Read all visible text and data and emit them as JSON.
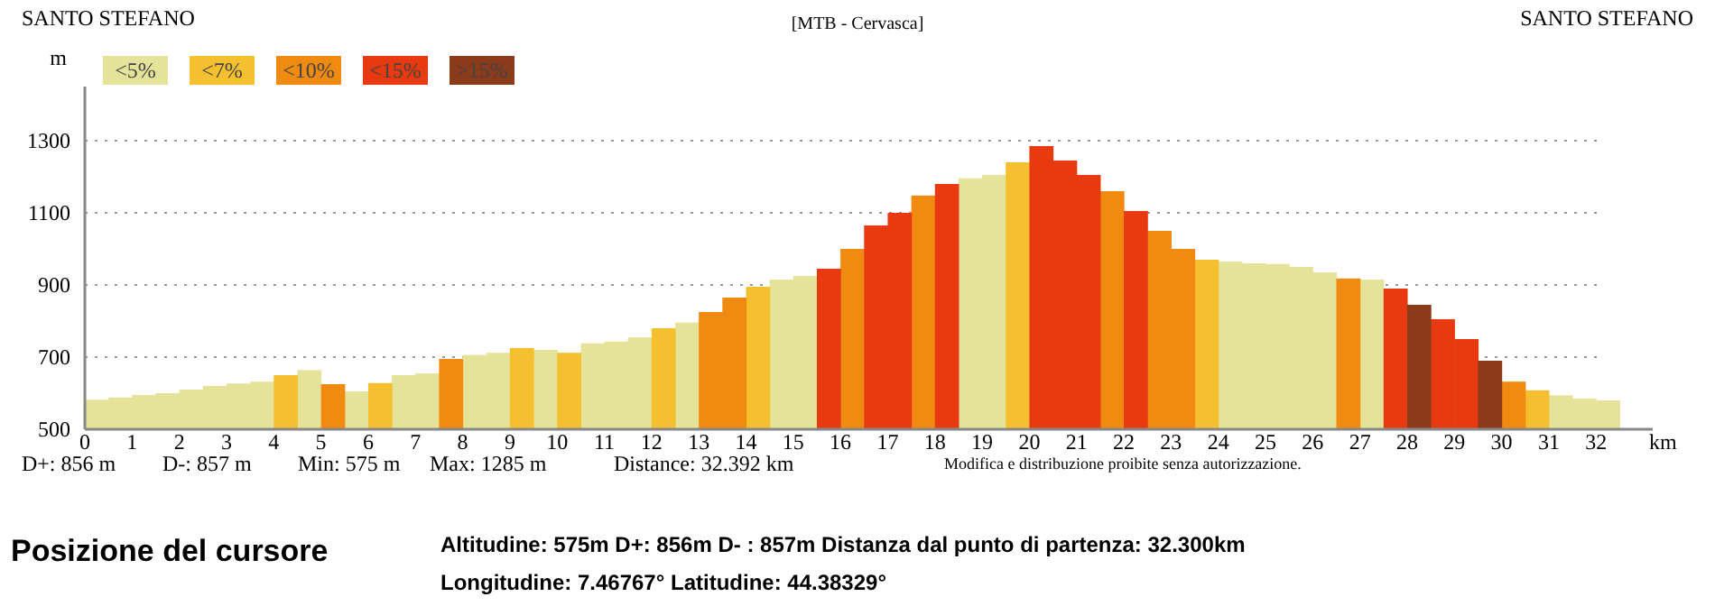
{
  "chart_data": {
    "type": "bar",
    "title": "[MTB - Cervasca]",
    "xlabel": "km",
    "ylabel": "m",
    "xlim": [
      0,
      33.2
    ],
    "xticks": [
      0,
      1,
      2,
      3,
      4,
      5,
      6,
      7,
      8,
      9,
      10,
      11,
      12,
      13,
      14,
      15,
      16,
      17,
      18,
      19,
      20,
      21,
      22,
      23,
      24,
      25,
      26,
      27,
      28,
      29,
      30,
      31,
      32
    ],
    "ylim": [
      500,
      1450
    ],
    "yticks": [
      500,
      700,
      900,
      1100,
      1300
    ],
    "grid": "y",
    "legend": "top left",
    "series": [
      {
        "name": "<5%",
        "color": "#e5e39a",
        "x": [
          0.25,
          0.75,
          1.25,
          1.75,
          2.25,
          2.75,
          3.25,
          3.75,
          4.75,
          5.75,
          6.75,
          7.25,
          8.25,
          8.75,
          9.75,
          10.75,
          11.25,
          11.75,
          12.75,
          14.75,
          15.25,
          18.75,
          19.25,
          24.25,
          24.75,
          25.25,
          25.75,
          26.25,
          27.25,
          31.25,
          31.75,
          32.25
        ],
        "values": [
          582,
          588,
          595,
          600,
          610,
          620,
          627,
          632,
          664,
          605,
          650,
          655,
          706,
          712,
          720,
          738,
          743,
          755,
          796,
          915,
          925,
          1196,
          1205,
          965,
          960,
          958,
          950,
          935,
          915,
          594,
          585,
          580
        ]
      },
      {
        "name": "<7%",
        "color": "#f5c030",
        "x": [
          4.25,
          6.25,
          9.25,
          10.25,
          12.25,
          14.25,
          19.75,
          23.75,
          30.75
        ],
        "values": [
          650,
          628,
          725,
          712,
          780,
          895,
          1240,
          970,
          608
        ]
      },
      {
        "name": "<10%",
        "color": "#f08a10",
        "x": [
          5.25,
          7.75,
          13.25,
          13.75,
          16.25,
          17.75,
          21.75,
          22.75,
          23.25,
          26.75,
          30.25
        ],
        "values": [
          625,
          695,
          825,
          865,
          1000,
          1148,
          1160,
          1050,
          1000,
          918,
          632
        ]
      },
      {
        "name": "<15%",
        "color": "#e83a10",
        "x": [
          15.75,
          16.75,
          17.25,
          18.25,
          20.25,
          20.75,
          21.25,
          22.25,
          27.75,
          28.75,
          29.25
        ],
        "values": [
          945,
          1065,
          1100,
          1180,
          1285,
          1245,
          1205,
          1105,
          890,
          805,
          750
        ]
      },
      {
        "name": ">15%",
        "color": "#8b3a1a",
        "x": [
          28.25,
          29.75
        ],
        "values": [
          845,
          690
        ]
      }
    ],
    "annotations": [
      "SANTO STEFANO",
      "SANTO STEFANO",
      "D+: 856 m",
      "D-: 857 m",
      "Min: 575 m",
      "Max: 1285 m",
      "Distance: 32.392 km",
      "Modifica e distribuzione proibite senza autorizzazione.",
      "Posizione del cursore",
      "Altitudine: 575m   D+: 856m   D- : 857m   Distanza dal punto di partenza: 32.300km",
      "Longitudine: 7.46767°   Latitudine: 44.38329°"
    ]
  }
}
